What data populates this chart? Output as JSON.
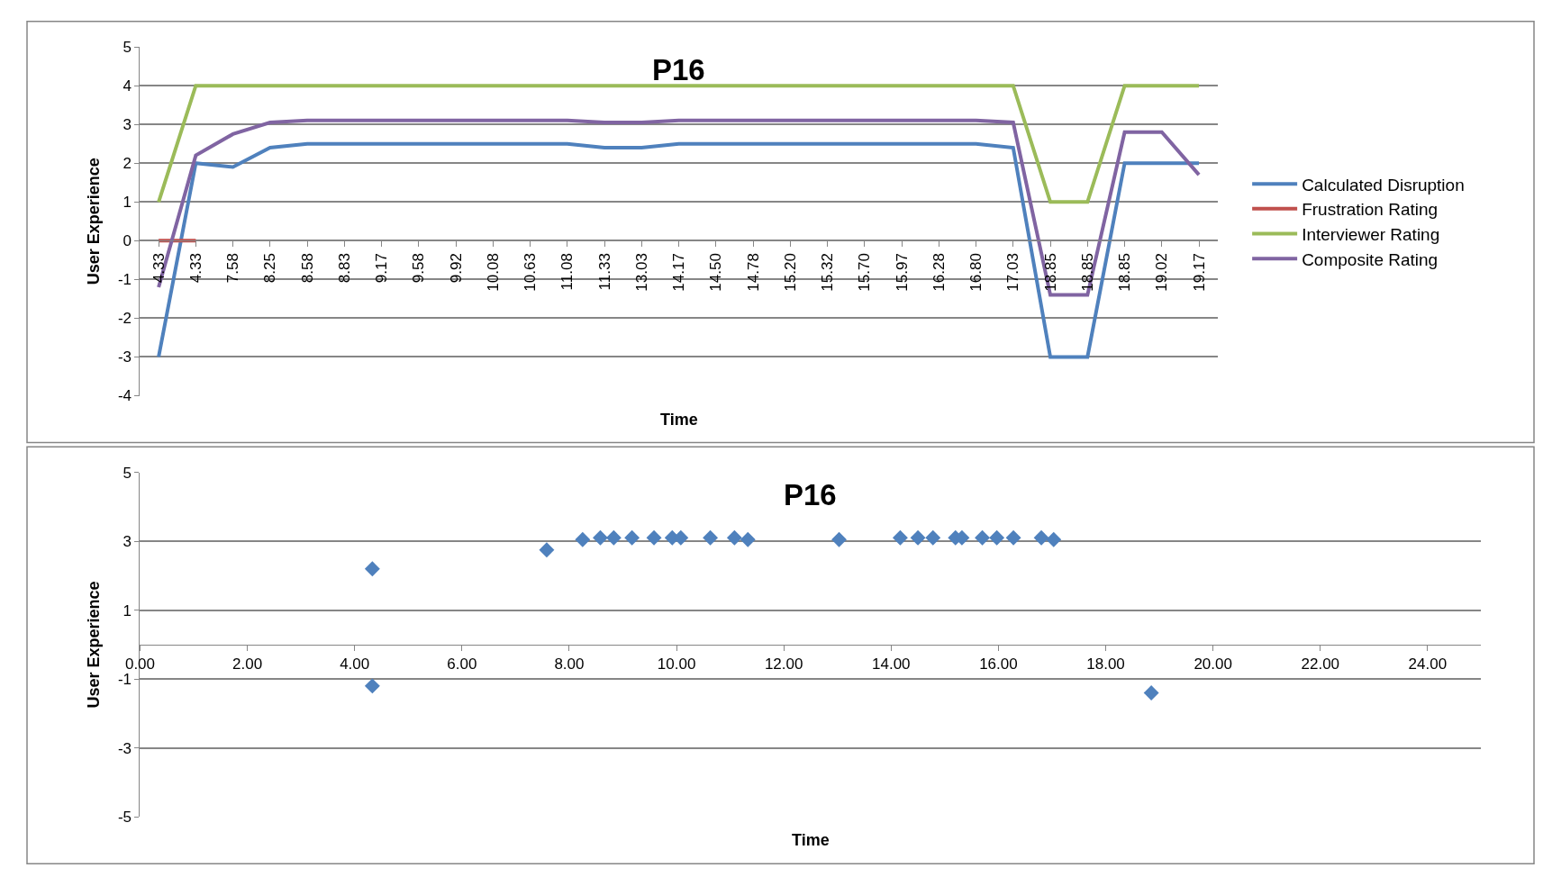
{
  "chart_data": [
    {
      "type": "line",
      "title": "P16",
      "xlabel": "Time",
      "ylabel": "User Experience",
      "categories": [
        "4.33",
        "4.33",
        "7.58",
        "8.25",
        "8.58",
        "8.83",
        "9.17",
        "9.58",
        "9.92",
        "10.08",
        "10.63",
        "11.08",
        "11.33",
        "13.03",
        "14.17",
        "14.50",
        "14.78",
        "15.20",
        "15.32",
        "15.70",
        "15.97",
        "16.28",
        "16.80",
        "17.03",
        "18.85",
        "18.85",
        "18.85",
        "19.02",
        "19.17"
      ],
      "series": [
        {
          "name": "Calculated Disruption",
          "color": "#4f81bd",
          "values": [
            -3,
            2,
            1.9,
            2.4,
            2.5,
            2.5,
            2.5,
            2.5,
            2.5,
            2.5,
            2.5,
            2.5,
            2.4,
            2.4,
            2.5,
            2.5,
            2.5,
            2.5,
            2.5,
            2.5,
            2.5,
            2.5,
            2.5,
            2.4,
            -3,
            -3,
            2,
            2,
            2
          ]
        },
        {
          "name": "Frustration Rating",
          "color": "#c0504d",
          "values": [
            0,
            0,
            null,
            null,
            null,
            null,
            null,
            null,
            null,
            null,
            null,
            null,
            null,
            null,
            null,
            null,
            null,
            null,
            null,
            null,
            null,
            null,
            null,
            null,
            null,
            null,
            null,
            null,
            null
          ]
        },
        {
          "name": "Interviewer Rating",
          "color": "#9bbb59",
          "values": [
            1,
            4,
            4,
            4,
            4,
            4,
            4,
            4,
            4,
            4,
            4,
            4,
            4,
            4,
            4,
            4,
            4,
            4,
            4,
            4,
            4,
            4,
            4,
            4,
            1,
            1,
            4,
            4,
            4
          ]
        },
        {
          "name": "Composite Rating",
          "color": "#8064a2",
          "values": [
            -1.2,
            2.2,
            2.75,
            3.05,
            3.1,
            3.1,
            3.1,
            3.1,
            3.1,
            3.1,
            3.1,
            3.1,
            3.05,
            3.05,
            3.1,
            3.1,
            3.1,
            3.1,
            3.1,
            3.1,
            3.1,
            3.1,
            3.1,
            3.05,
            -1.4,
            -1.4,
            2.8,
            2.8,
            1.7
          ]
        }
      ],
      "ylim": [
        -4,
        5
      ],
      "yticks": [
        -4,
        -3,
        -2,
        -1,
        0,
        1,
        2,
        3,
        4,
        5
      ],
      "grid": "y",
      "legend": "right",
      "marker": "none",
      "line_style": "solid"
    },
    {
      "type": "scatter",
      "title": "P16",
      "xlabel": "Time",
      "ylabel": "User Experience",
      "series": [
        {
          "color": "#4f81bd",
          "x": [
            4.33,
            4.33,
            7.58,
            8.25,
            8.58,
            8.83,
            9.17,
            9.58,
            9.92,
            10.08,
            10.63,
            11.08,
            11.33,
            13.03,
            14.17,
            14.5,
            14.78,
            15.2,
            15.32,
            15.7,
            15.97,
            16.28,
            16.8,
            17.03,
            18.85
          ],
          "values": [
            -1.2,
            2.2,
            2.75,
            3.05,
            3.1,
            3.1,
            3.1,
            3.1,
            3.1,
            3.1,
            3.1,
            3.1,
            3.05,
            3.05,
            3.1,
            3.1,
            3.1,
            3.1,
            3.1,
            3.1,
            3.1,
            3.1,
            3.1,
            3.05,
            -1.4
          ]
        }
      ],
      "xlim": [
        0,
        25
      ],
      "xticks": [
        {
          "value": 0,
          "label": "0.00"
        },
        {
          "value": 2,
          "label": "2.00"
        },
        {
          "value": 4,
          "label": "4.00"
        },
        {
          "value": 6,
          "label": "6.00"
        },
        {
          "value": 8,
          "label": "8.00"
        },
        {
          "value": 10,
          "label": "10.00"
        },
        {
          "value": 12,
          "label": "12.00"
        },
        {
          "value": 14,
          "label": "14.00"
        },
        {
          "value": 16,
          "label": "16.00"
        },
        {
          "value": 18,
          "label": "18.00"
        },
        {
          "value": 20,
          "label": "20.00"
        },
        {
          "value": 22,
          "label": "22.00"
        },
        {
          "value": 24,
          "label": "24.00"
        }
      ],
      "ylim": [
        -5,
        5
      ],
      "yticks": [
        -5,
        -3,
        -1,
        1,
        3,
        5
      ],
      "grid": "y",
      "legend": false,
      "marker": "diamond"
    }
  ]
}
